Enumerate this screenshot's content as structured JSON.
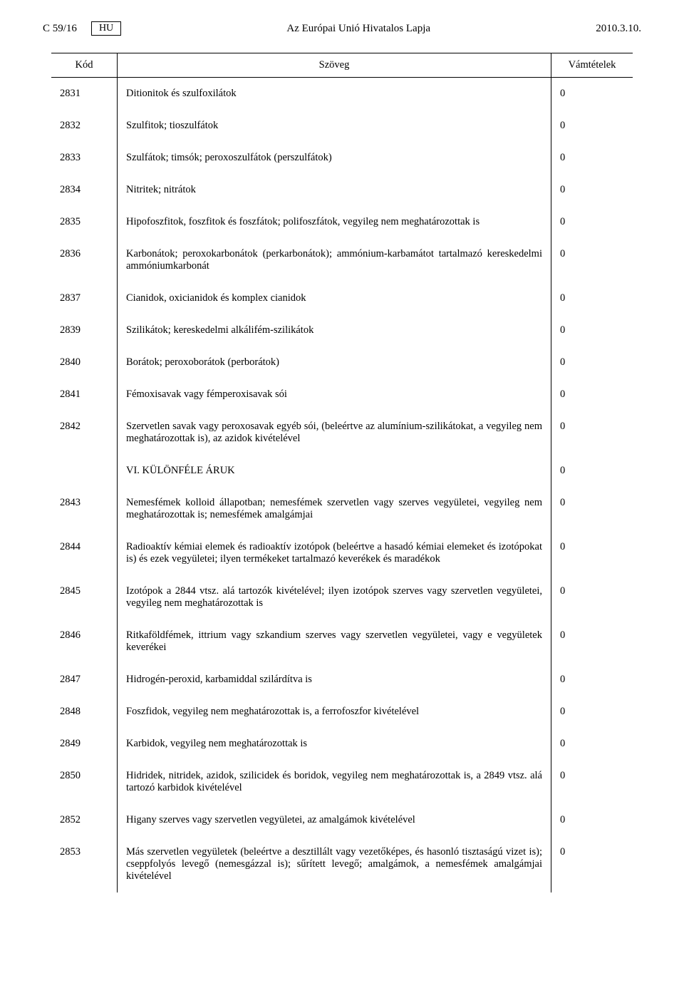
{
  "header": {
    "doc_ref": "C 59/16",
    "lang": "HU",
    "journal_title": "Az Európai Unió Hivatalos Lapja",
    "date": "2010.3.10."
  },
  "table": {
    "columns": {
      "code": "Kód",
      "text": "Szöveg",
      "rate": "Vámtételek"
    },
    "rows": [
      {
        "code": "2831",
        "text": "Ditionitok és szulfoxilátok",
        "rate": "0"
      },
      {
        "code": "2832",
        "text": "Szulfitok; tioszulfátok",
        "rate": "0"
      },
      {
        "code": "2833",
        "text": "Szulfátok; timsók; peroxoszulfátok (perszulfátok)",
        "rate": "0"
      },
      {
        "code": "2834",
        "text": "Nitritek; nitrátok",
        "rate": "0"
      },
      {
        "code": "2835",
        "text": "Hipofoszfitok, foszfitok és foszfátok; polifoszfátok, vegyileg nem meghatározottak is",
        "rate": "0"
      },
      {
        "code": "2836",
        "text": "Karbonátok; peroxokarbonátok (perkarbonátok); ammónium-karbamátot tartalmazó kereskedelmi ammóniumkarbonát",
        "rate": "0"
      },
      {
        "code": "2837",
        "text": "Cianidok, oxicianidok és komplex cianidok",
        "rate": "0"
      },
      {
        "code": "2839",
        "text": "Szilikátok; kereskedelmi alkálifém-szilikátok",
        "rate": "0"
      },
      {
        "code": "2840",
        "text": "Borátok; peroxoborátok (perborátok)",
        "rate": "0"
      },
      {
        "code": "2841",
        "text": "Fémoxisavak vagy fémperoxisavak sói",
        "rate": "0"
      },
      {
        "code": "2842",
        "text": "Szervetlen savak vagy peroxosavak egyéb sói, (beleértve az alumínium-szilikátokat, a vegyileg nem meghatározottak is), az azidok kivételével",
        "rate": "0"
      },
      {
        "code": "",
        "text": "VI. KÜLÖNFÉLE ÁRUK",
        "rate": "0"
      },
      {
        "code": "2843",
        "text": "Nemesfémek kolloid állapotban; nemesfémek szervetlen vagy szerves vegyületei, vegyileg nem meghatározottak is; nemesfémek amalgámjai",
        "rate": "0"
      },
      {
        "code": "2844",
        "text": "Radioaktív kémiai elemek és radioaktív izotópok (beleértve a hasadó kémiai elemeket és izotópokat is) és ezek vegyületei; ilyen termékeket tartalmazó keverékek és maradékok",
        "rate": "0"
      },
      {
        "code": "2845",
        "text": "Izotópok a 2844 vtsz. alá tartozók kivételével; ilyen izotópok szerves vagy szervetlen vegyületei, vegyileg nem meghatározottak is",
        "rate": "0"
      },
      {
        "code": "2846",
        "text": "Ritkaföldfémek, ittrium vagy szkandium szerves vagy szervetlen vegyületei, vagy e vegyületek keverékei",
        "rate": "0"
      },
      {
        "code": "2847",
        "text": "Hidrogén-peroxid, karbamiddal szilárdítva is",
        "rate": "0"
      },
      {
        "code": "2848",
        "text": "Foszfidok, vegyileg nem meghatározottak is, a ferrofoszfor kivételével",
        "rate": "0"
      },
      {
        "code": "2849",
        "text": "Karbidok, vegyileg nem meghatározottak is",
        "rate": "0"
      },
      {
        "code": "2850",
        "text": "Hidridek, nitridek, azidok, szilicidek és boridok, vegyileg nem meghatározottak is, a 2849 vtsz. alá tartozó karbidok kivételével",
        "rate": "0"
      },
      {
        "code": "2852",
        "text": "Higany szerves vagy szervetlen vegyületei, az amalgámok kivételével",
        "rate": "0"
      },
      {
        "code": "2853",
        "text": "Más szervetlen vegyületek (beleértve a desztillált vagy vezetőképes, és hasonló tisztaságú vizet is); cseppfolyós levegő (nemesgázzal is); sűrített levegő; amalgámok, a nemesfémek amalgámjai kivételével",
        "rate": "0"
      }
    ]
  }
}
